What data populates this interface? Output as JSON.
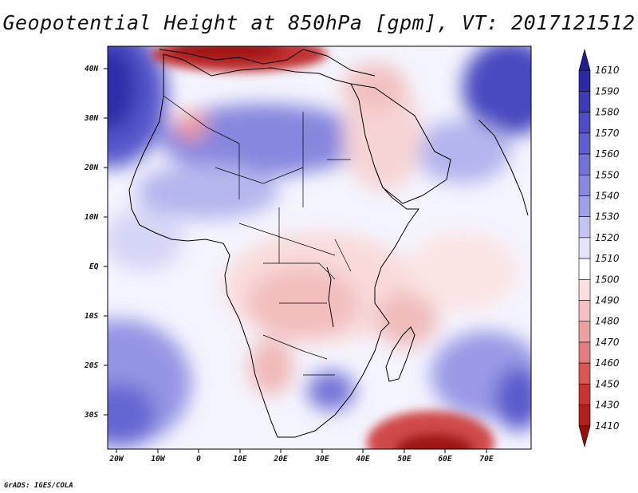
{
  "title": "Geopotential Height at 850hPa [gpm], VT: 2017121512",
  "credit": "GrADS: IGES/COLA",
  "lat_ticks": [
    "40N",
    "30N",
    "20N",
    "10N",
    "EQ",
    "10S",
    "20S",
    "30S"
  ],
  "lon_ticks": [
    "20W",
    "10W",
    "0",
    "10E",
    "20E",
    "30E",
    "40E",
    "50E",
    "60E",
    "70E"
  ],
  "colorbar": {
    "levels": [
      "1610",
      "1590",
      "1580",
      "1570",
      "1560",
      "1550",
      "1540",
      "1530",
      "1520",
      "1510",
      "1500",
      "1490",
      "1480",
      "1470",
      "1460",
      "1450",
      "1430",
      "1410"
    ],
    "colors": [
      "#1e1e96",
      "#2b2ba8",
      "#3c3cb8",
      "#4c4cc6",
      "#5e5ed0",
      "#7272d8",
      "#8888e0",
      "#a0a0e8",
      "#c4c4f2",
      "#e4e4fa",
      "#ffffff",
      "#fbdede",
      "#f4c0c0",
      "#eea0a0",
      "#e47c7c",
      "#d95656",
      "#c83434",
      "#b41e1e",
      "#960e0e"
    ]
  },
  "region_colors": {
    "ocean_high": "#7a7adc",
    "ocean_mid": "#a4a4ec",
    "sahara": "#8c8ce0",
    "med_low": "#b52020",
    "east_africa": "#f6caca",
    "sw_indian_low": "#b81a1a"
  }
}
